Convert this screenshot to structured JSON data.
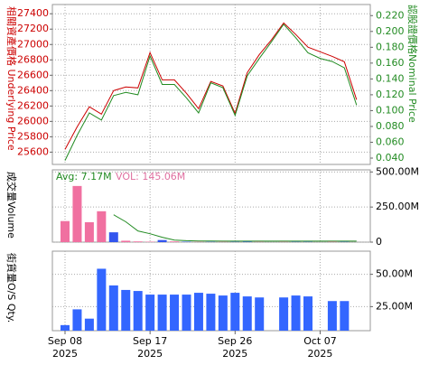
{
  "chart_data": [
    {
      "type": "line",
      "y_title": "相關資產價格 Underlying Price",
      "y2_title": "認股證價格Nominal Price",
      "ylim": [
        25440,
        27520
      ],
      "yticks": [
        25600,
        25800,
        26000,
        26200,
        26400,
        26600,
        26800,
        27000,
        27200,
        27400
      ],
      "y2lim": [
        0.032,
        0.234
      ],
      "y2ticks": [
        {
          "value": 0.04,
          "label": "0.040"
        },
        {
          "value": 0.06,
          "label": "0.060"
        },
        {
          "value": 0.08,
          "label": "0.080"
        },
        {
          "value": 0.1,
          "label": "0.100"
        },
        {
          "value": 0.12,
          "label": "0.120"
        },
        {
          "value": 0.14,
          "label": "0.140"
        },
        {
          "value": 0.16,
          "label": "0.160"
        },
        {
          "value": 0.18,
          "label": "0.180"
        },
        {
          "value": 0.2,
          "label": "0.200"
        },
        {
          "value": 0.22,
          "label": "0.220"
        }
      ],
      "grid": true,
      "series": [
        {
          "color": "#cc0000",
          "values": [
            25635,
            25930,
            26190,
            26095,
            26400,
            26447,
            26435,
            26895,
            26540,
            26540,
            26365,
            26165,
            26520,
            26460,
            26105,
            26635,
            26870,
            27060,
            27280,
            27130,
            26965,
            26905,
            26845,
            26775,
            26283
          ]
        },
        {
          "color": "#228b22",
          "axis": "y2",
          "values": [
            0.037,
            0.069,
            0.097,
            0.088,
            0.119,
            0.123,
            0.12,
            0.169,
            0.133,
            0.133,
            0.116,
            0.097,
            0.135,
            0.129,
            0.094,
            0.144,
            0.166,
            0.187,
            0.209,
            0.192,
            0.173,
            0.166,
            0.162,
            0.154,
            0.107
          ]
        }
      ]
    },
    {
      "type": "bar",
      "y_title": "成交量Volume",
      "avg_label": "Avg: 7.17M",
      "vol_label": "VOL: 145.06M",
      "ylim": [
        0,
        515
      ],
      "yticks": [
        0,
        {
          "value": 250,
          "label": "250.00M"
        },
        {
          "value": 500,
          "label": "500.00M"
        }
      ],
      "grid": true,
      "series": [
        {
          "colors": [
            "#f070a0",
            "#f070a0",
            "#f070a0",
            "#f070a0",
            "#3355ee",
            "#f070a0",
            "#f070a0",
            "#f070a0",
            "#3355ee",
            "#f070a0",
            "#3355ee",
            "#f070a0",
            "#3355ee",
            "#f070a0",
            "#3355ee",
            "#3355ee",
            "#f070a0",
            "#f070a0",
            "#f070a0",
            "#3355ee",
            "#3355ee",
            "#3355ee",
            "#f070a0",
            "#3355ee",
            "#3355ee"
          ],
          "values": [
            150,
            400,
            142,
            220,
            70,
            10,
            5,
            3,
            15,
            5,
            3,
            2,
            2,
            2,
            2,
            4,
            2,
            null,
            2,
            2,
            2,
            null,
            3,
            2,
            null
          ]
        },
        {
          "type": "line",
          "color": "#228b22",
          "values": [
            null,
            null,
            null,
            null,
            195,
            145,
            80,
            60,
            35,
            15,
            10,
            8,
            8,
            7,
            7,
            7,
            7,
            7,
            7,
            7,
            7,
            7,
            7,
            7,
            7
          ]
        }
      ]
    },
    {
      "type": "bar",
      "y_title": "街貨量O/S Qty.",
      "color": "#3366ff",
      "ylim": [
        6.4,
        67.9
      ],
      "yticks": [
        {
          "value": 25,
          "label": "25.00M"
        },
        {
          "value": 50,
          "label": "50.00M"
        }
      ],
      "grid": true,
      "categories": [
        "Sep 08",
        null,
        null,
        null,
        null,
        null,
        null,
        "Sep 17",
        null,
        null,
        null,
        null,
        null,
        null,
        "Sep 26",
        null,
        null,
        null,
        null,
        null,
        null,
        "Oct 07",
        null,
        null,
        null
      ],
      "category_years": [
        "2025",
        null,
        null,
        null,
        null,
        null,
        null,
        "2025",
        null,
        null,
        null,
        null,
        null,
        null,
        "2025",
        null,
        null,
        null,
        null,
        null,
        null,
        "2025",
        null,
        null,
        null
      ],
      "values": [
        10.7,
        22.9,
        15.7,
        54.3,
        41.4,
        37.9,
        37.1,
        34.3,
        34.3,
        34.3,
        34.3,
        35.7,
        35,
        33.6,
        35.7,
        32.9,
        32.1,
        null,
        32.1,
        33.6,
        32.9,
        null,
        29.3,
        29.3,
        null
      ]
    }
  ]
}
